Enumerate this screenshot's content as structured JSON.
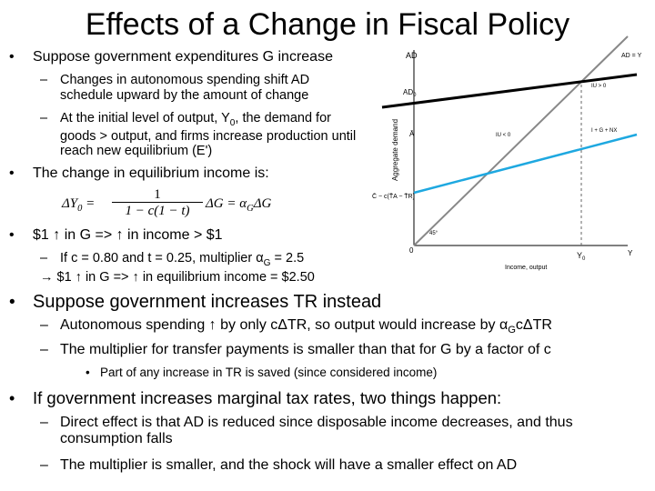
{
  "slide": {
    "title": "Effects of a Change in Fiscal Policy",
    "b1": {
      "text": "Suppose government expenditures G increase",
      "s1": "Changes in autonomous spending shift AD schedule upward by the amount of change",
      "s2": {
        "pre": "At the initial level of output, Y",
        "sub": "0",
        "post": ", the demand for goods > output, and firms increase production until reach new equilibrium (E')"
      }
    },
    "b2": {
      "text": "The change in equilibrium income is:",
      "formula": {
        "lhs": "ΔY",
        "lhs_sub": "0",
        "eq": "=",
        "num": "1",
        "den": "1 − c(1 − t)",
        "mid": "ΔG = α",
        "mid_sub": "G",
        "end": "ΔG"
      }
    },
    "b3": {
      "text": "$1 ↑ in G => ↑ in income > $1",
      "s1": {
        "pre": "If c = 0.80 and t = 0.25, multiplier α",
        "sub": "G",
        "post": " = 2.5"
      },
      "s2": "→ $1 ↑ in G => ↑ in equilibrium income = $2.50"
    },
    "b4": {
      "text": "Suppose government increases TR instead",
      "s1": {
        "pre": "Autonomous spending ↑ by only cΔTR, so output would increase by α",
        "sub": "G",
        "post": "cΔTR"
      },
      "s2": "The multiplier for transfer payments is smaller than that for G by a factor of c",
      "s3": "Part of any increase in TR is saved (since considered income)"
    },
    "b5": {
      "text": "If government increases marginal tax rates, two things happen:",
      "s1": "Direct effect is that AD is reduced since disposable income decreases, and thus consumption falls",
      "s2": "The multiplier is smaller, and the shock will have a smaller effect on AD"
    },
    "diagram": {
      "y_axis": "AD",
      "y_title": "Aggregate demand",
      "x_axis": "Y",
      "x_title": "Income, output",
      "origin": "0",
      "y0": "Y",
      "y0_sub": "0",
      "ad0": "AD",
      "ad0_sub": "0",
      "abar": "Ā",
      "intercept": "C̄ − c(T̄A − T̄R)",
      "line45": "AD = Y",
      "angle": "45°",
      "iu_pos": "IU > 0",
      "iu_neg": "IU < 0",
      "igx": "I + G + NX"
    }
  }
}
